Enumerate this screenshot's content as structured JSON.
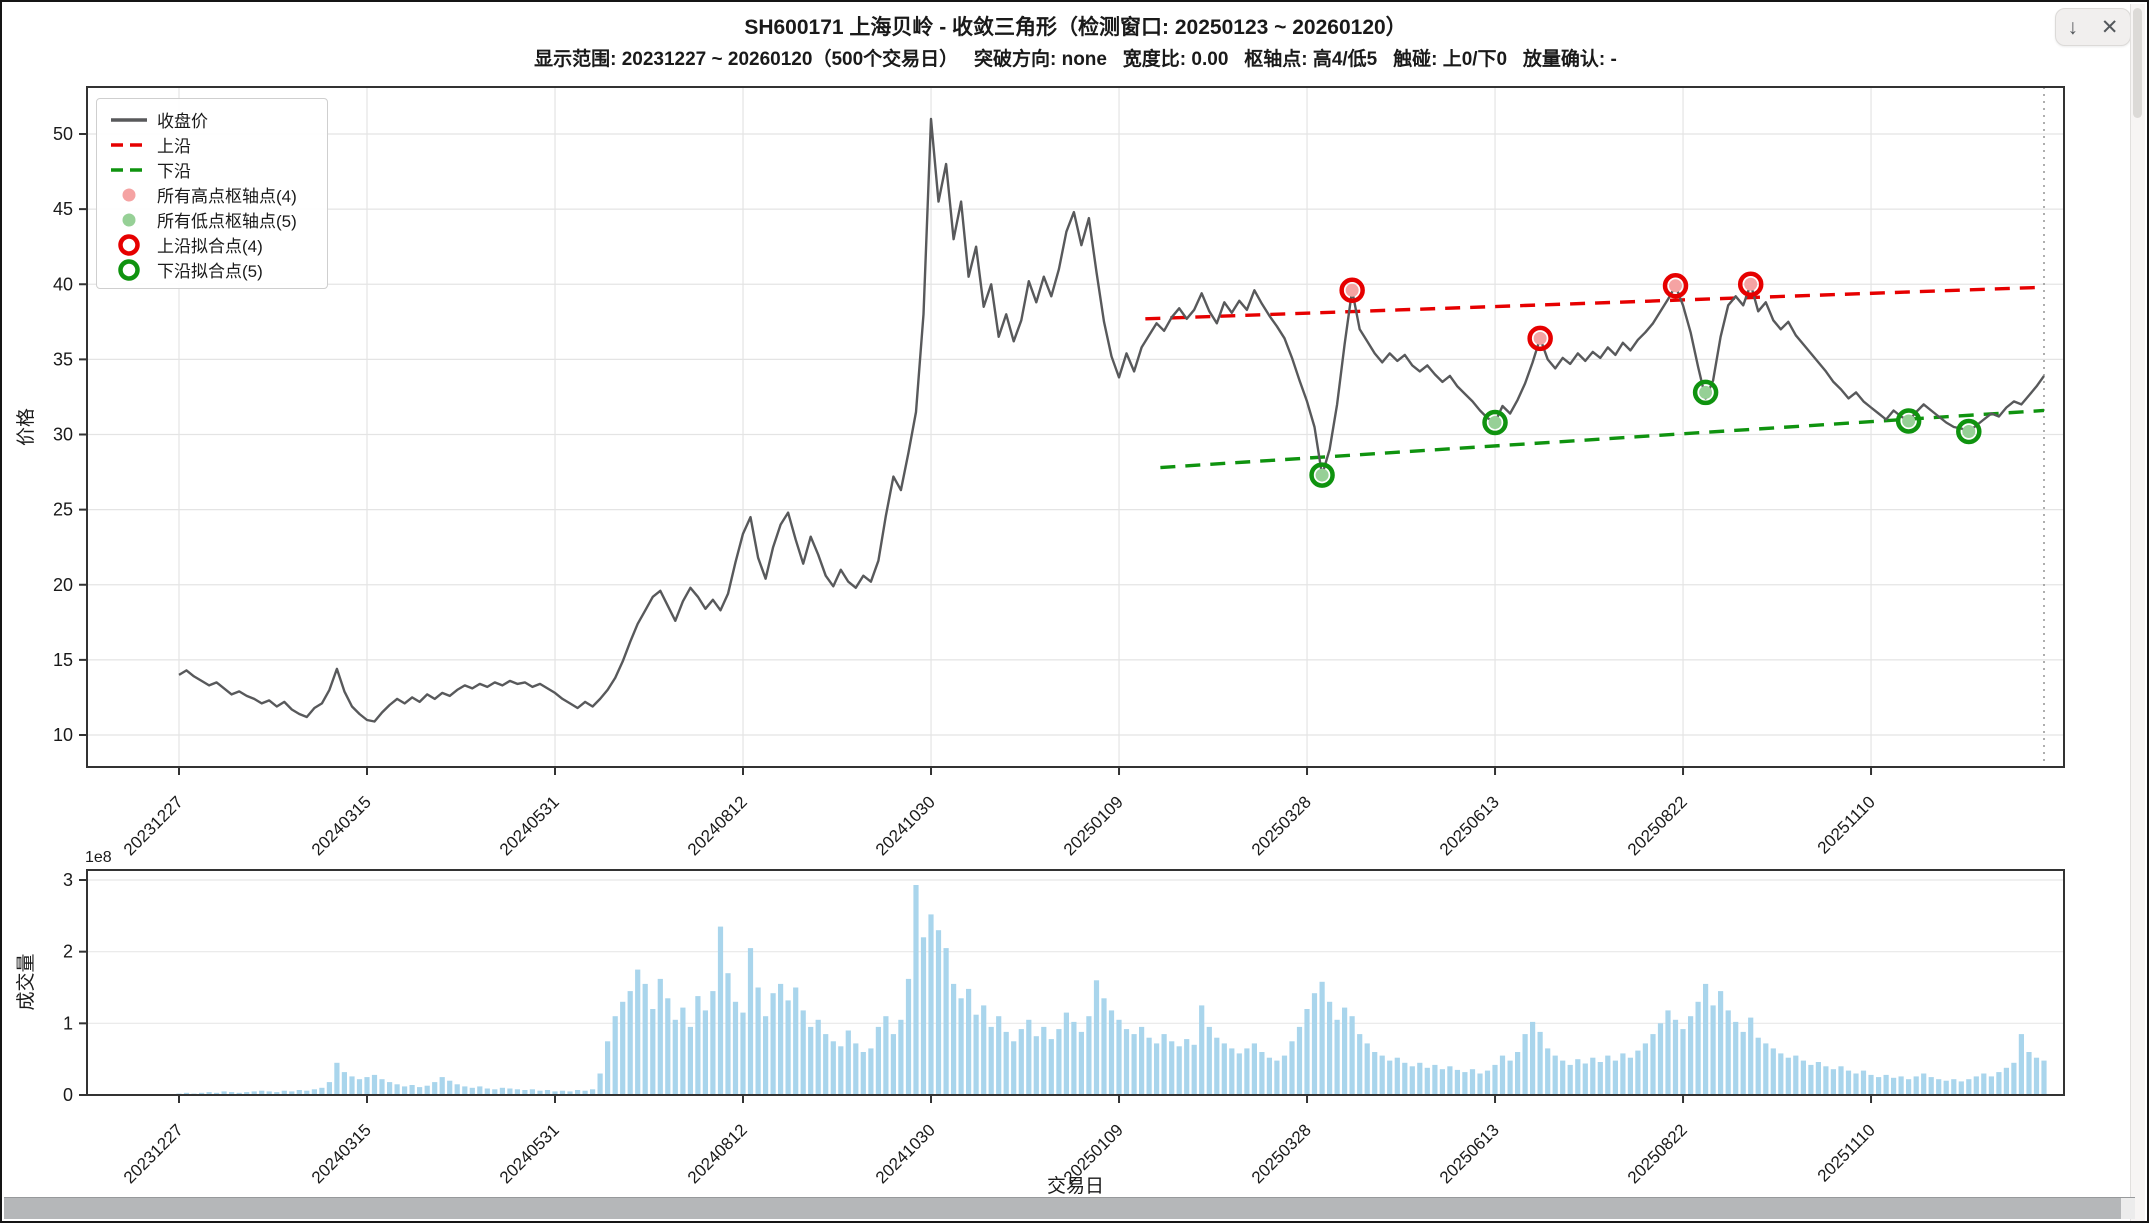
{
  "window": {
    "download_label": "↓",
    "close_label": "✕"
  },
  "header": {
    "title": "SH600171 上海贝岭 - 收敛三角形（检测窗口: 20250123 ~ 20260120）",
    "subtitle": "显示范围: 20231227 ~ 20260120（500个交易日）   突破方向: none   宽度比: 0.00   枢轴点: 高4/低5   触碰: 上0/下0   放量确认: -"
  },
  "chart_data": {
    "type": "line",
    "title": "SH600171 上海贝岭 - 收敛三角形（检测窗口: 20250123 ~ 20260120）",
    "x_tick_labels": [
      "20231227",
      "20240315",
      "20240531",
      "20240812",
      "20241030",
      "20250109",
      "20250328",
      "20250613",
      "20250822",
      "20251110"
    ],
    "x_tick_days": [
      0,
      50,
      100,
      150,
      200,
      250,
      300,
      350,
      400,
      450
    ],
    "x_total_days": 496,
    "grid": true,
    "legend_position": "upper-left",
    "legend": [
      {
        "type": "line",
        "color": "#58595b",
        "label": "收盘价"
      },
      {
        "type": "dash",
        "color": "#e60000",
        "label": "上沿"
      },
      {
        "type": "dash",
        "color": "#0f930f",
        "label": "下沿"
      },
      {
        "type": "dot",
        "color": "#f5a3a3",
        "label": "所有高点枢轴点(4)"
      },
      {
        "type": "dot",
        "color": "#96d096",
        "label": "所有低点枢轴点(5)"
      },
      {
        "type": "ring",
        "color": "#e60000",
        "label": "上沿拟合点(4)"
      },
      {
        "type": "ring",
        "color": "#0f930f",
        "label": "下沿拟合点(5)"
      }
    ],
    "price_chart": {
      "ylabel": "价格",
      "y_ticks": [
        10,
        15,
        20,
        25,
        30,
        35,
        40,
        45,
        50
      ],
      "ylim": [
        7.9,
        53.1
      ],
      "line_color": "#58595b",
      "grid_color": "#e4e4e4",
      "day_step": 2,
      "prices": [
        14.0,
        14.3,
        13.9,
        13.6,
        13.3,
        13.5,
        13.1,
        12.7,
        12.9,
        12.6,
        12.4,
        12.1,
        12.3,
        11.9,
        12.2,
        11.7,
        11.4,
        11.2,
        11.8,
        12.1,
        13.0,
        14.4,
        12.9,
        11.9,
        11.4,
        11.0,
        10.9,
        11.5,
        12.0,
        12.4,
        12.1,
        12.5,
        12.2,
        12.7,
        12.4,
        12.8,
        12.6,
        13.0,
        13.3,
        13.1,
        13.4,
        13.2,
        13.5,
        13.3,
        13.6,
        13.4,
        13.5,
        13.2,
        13.4,
        13.1,
        12.8,
        12.4,
        12.1,
        11.8,
        12.2,
        11.9,
        12.4,
        13.0,
        13.8,
        14.9,
        16.2,
        17.4,
        18.3,
        19.2,
        19.6,
        18.6,
        17.6,
        18.9,
        19.8,
        19.2,
        18.4,
        19.0,
        18.3,
        19.4,
        21.5,
        23.4,
        24.5,
        21.8,
        20.4,
        22.5,
        24.0,
        24.8,
        23.0,
        21.4,
        23.2,
        22.0,
        20.6,
        19.9,
        21.0,
        20.2,
        19.8,
        20.6,
        20.2,
        21.6,
        24.6,
        27.2,
        26.3,
        28.8,
        31.5,
        38.0,
        51.0,
        45.5,
        48.0,
        43.0,
        45.5,
        40.5,
        42.5,
        38.5,
        40.0,
        36.5,
        38.0,
        36.2,
        37.6,
        40.2,
        38.8,
        40.5,
        39.2,
        41.0,
        43.5,
        44.8,
        42.6,
        44.4,
        40.8,
        37.5,
        35.2,
        33.8,
        35.4,
        34.2,
        35.8,
        36.6,
        37.4,
        36.9,
        37.8,
        38.4,
        37.7,
        38.3,
        39.4,
        38.2,
        37.4,
        38.8,
        38.1,
        38.9,
        38.3,
        39.6,
        38.7,
        37.9,
        37.2,
        36.4,
        35.1,
        33.6,
        32.2,
        30.5,
        27.3,
        29.0,
        32.0,
        36.0,
        39.6,
        37.0,
        36.2,
        35.4,
        34.8,
        35.4,
        34.9,
        35.3,
        34.6,
        34.2,
        34.6,
        34.0,
        33.5,
        33.9,
        33.2,
        32.7,
        32.2,
        31.6,
        31.1,
        30.8,
        31.9,
        31.4,
        32.3,
        33.4,
        34.8,
        36.4,
        35.0,
        34.4,
        35.1,
        34.7,
        35.4,
        34.9,
        35.5,
        35.1,
        35.8,
        35.3,
        36.1,
        35.6,
        36.3,
        36.8,
        37.4,
        38.2,
        39.0,
        39.9,
        38.6,
        36.8,
        34.5,
        32.4,
        33.6,
        36.5,
        38.6,
        39.2,
        38.6,
        40.0,
        38.2,
        38.8,
        37.6,
        37.0,
        37.5,
        36.6,
        36.0,
        35.4,
        34.8,
        34.2,
        33.5,
        33.0,
        32.4,
        32.8,
        32.2,
        31.8,
        31.4,
        31.0,
        31.6,
        31.2,
        30.9,
        31.5,
        32.0,
        31.6,
        31.2,
        30.8,
        30.5,
        30.4,
        30.2,
        30.6,
        31.0,
        31.4,
        31.2,
        31.8,
        32.2,
        32.0,
        32.6,
        33.2,
        33.9
      ],
      "upper_line": {
        "label": "上沿",
        "color": "#e60000",
        "day_start": 257,
        "price_start": 37.7,
        "day_end": 496,
        "price_end": 39.8
      },
      "lower_line": {
        "label": "下沿",
        "color": "#0f930f",
        "day_start": 261,
        "price_start": 27.8,
        "day_end": 496,
        "price_end": 31.6
      },
      "high_pivots": {
        "label": "所有高点枢轴点(4)",
        "color": "#f5a3a3",
        "points": [
          [
            312,
            39.6
          ],
          [
            362,
            36.4
          ],
          [
            398,
            39.9
          ],
          [
            418,
            40.0
          ]
        ]
      },
      "low_pivots": {
        "label": "所有低点枢轴点(5)",
        "color": "#96d096",
        "points": [
          [
            304,
            27.3
          ],
          [
            350,
            30.8
          ],
          [
            406,
            32.8
          ],
          [
            460,
            30.9
          ],
          [
            476,
            30.2
          ]
        ]
      },
      "upper_fit": {
        "label": "上沿拟合点(4)",
        "color": "#e60000",
        "points": [
          [
            312,
            39.6
          ],
          [
            362,
            36.4
          ],
          [
            398,
            39.9
          ],
          [
            418,
            40.0
          ]
        ]
      },
      "lower_fit": {
        "label": "下沿拟合点(5)",
        "color": "#0f930f",
        "points": [
          [
            304,
            27.3
          ],
          [
            350,
            30.8
          ],
          [
            406,
            32.8
          ],
          [
            460,
            30.9
          ],
          [
            476,
            30.2
          ]
        ]
      },
      "end_marker_day": 496
    },
    "volume_chart": {
      "ylabel": "成交量",
      "xlabel": "交易日",
      "scale_label": "1e8",
      "y_ticks": [
        0,
        1,
        2,
        3
      ],
      "ylim": [
        0,
        3.1
      ],
      "bar_color": "#a9d5ec",
      "day_step": 2,
      "volumes": [
        0.02,
        0.03,
        0.02,
        0.03,
        0.04,
        0.03,
        0.05,
        0.04,
        0.03,
        0.04,
        0.05,
        0.06,
        0.05,
        0.04,
        0.06,
        0.05,
        0.07,
        0.06,
        0.08,
        0.1,
        0.18,
        0.45,
        0.32,
        0.26,
        0.22,
        0.25,
        0.28,
        0.22,
        0.18,
        0.15,
        0.12,
        0.14,
        0.11,
        0.13,
        0.18,
        0.25,
        0.2,
        0.15,
        0.12,
        0.1,
        0.12,
        0.09,
        0.08,
        0.1,
        0.09,
        0.08,
        0.07,
        0.08,
        0.06,
        0.07,
        0.05,
        0.06,
        0.05,
        0.07,
        0.06,
        0.08,
        0.3,
        0.75,
        1.1,
        1.3,
        1.45,
        1.75,
        1.55,
        1.2,
        1.62,
        1.35,
        1.05,
        1.22,
        0.95,
        1.38,
        1.18,
        1.45,
        2.35,
        1.7,
        1.3,
        1.15,
        2.05,
        1.5,
        1.1,
        1.42,
        1.55,
        1.32,
        1.5,
        1.18,
        0.95,
        1.05,
        0.85,
        0.75,
        0.68,
        0.9,
        0.72,
        0.6,
        0.65,
        0.95,
        1.1,
        0.85,
        1.05,
        1.62,
        2.93,
        2.2,
        2.52,
        2.3,
        2.05,
        1.55,
        1.35,
        1.48,
        1.12,
        1.25,
        0.95,
        1.1,
        0.88,
        0.75,
        0.92,
        1.05,
        0.82,
        0.95,
        0.78,
        0.92,
        1.15,
        1.02,
        0.88,
        1.1,
        1.6,
        1.35,
        1.18,
        1.05,
        0.92,
        0.85,
        0.95,
        0.8,
        0.72,
        0.85,
        0.75,
        0.68,
        0.78,
        0.7,
        1.25,
        0.95,
        0.8,
        0.72,
        0.65,
        0.58,
        0.65,
        0.72,
        0.6,
        0.52,
        0.48,
        0.55,
        0.75,
        0.95,
        1.2,
        1.42,
        1.58,
        1.3,
        1.05,
        1.22,
        1.1,
        0.85,
        0.72,
        0.6,
        0.55,
        0.48,
        0.52,
        0.45,
        0.4,
        0.45,
        0.38,
        0.42,
        0.36,
        0.4,
        0.35,
        0.32,
        0.36,
        0.3,
        0.34,
        0.42,
        0.55,
        0.48,
        0.6,
        0.85,
        1.02,
        0.88,
        0.65,
        0.55,
        0.48,
        0.42,
        0.5,
        0.44,
        0.52,
        0.46,
        0.55,
        0.48,
        0.58,
        0.52,
        0.62,
        0.72,
        0.85,
        1.0,
        1.18,
        1.05,
        0.92,
        1.1,
        1.3,
        1.55,
        1.25,
        1.45,
        1.18,
        1.02,
        0.88,
        1.08,
        0.8,
        0.72,
        0.65,
        0.58,
        0.52,
        0.55,
        0.48,
        0.42,
        0.46,
        0.4,
        0.36,
        0.4,
        0.34,
        0.3,
        0.34,
        0.28,
        0.25,
        0.28,
        0.24,
        0.26,
        0.22,
        0.26,
        0.3,
        0.25,
        0.22,
        0.2,
        0.22,
        0.19,
        0.22,
        0.26,
        0.3,
        0.26,
        0.32,
        0.38,
        0.45,
        0.85,
        0.6,
        0.52,
        0.48
      ]
    }
  }
}
